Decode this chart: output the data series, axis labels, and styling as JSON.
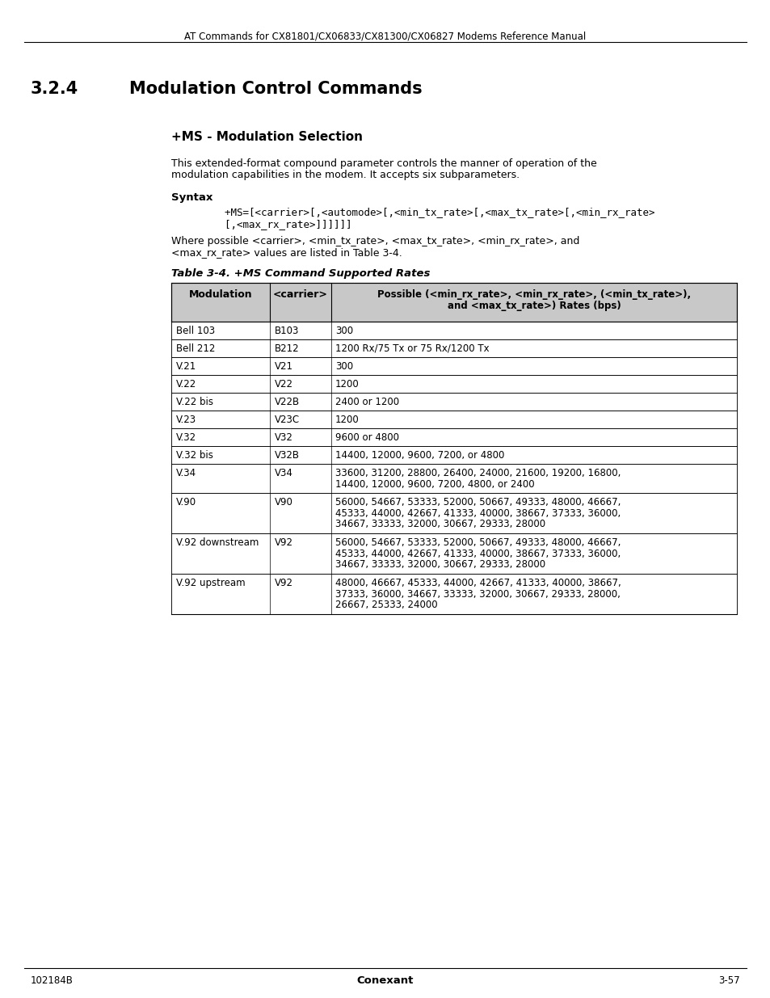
{
  "page_title": "AT Commands for CX81801/CX06833/CX81300/CX06827 Modems Reference Manual",
  "section": "3.2.4",
  "section_title": "Modulation Control Commands",
  "subsection_title": "+MS - Modulation Selection",
  "body_text1a": "This extended-format compound parameter controls the manner of operation of the",
  "body_text1b": "modulation capabilities in the modem. It accepts six subparameters.",
  "syntax_label": "Syntax",
  "syntax_line1": "    +MS=[<carrier>[,<automode>[,<min_tx_rate>[,<max_tx_rate>[,<min_rx_rate>",
  "syntax_line2": "    [,<max_rx_rate>]]]]]]",
  "where_line1": "Where possible <carrier>, <min_tx_rate>, <max_tx_rate>, <min_rx_rate>, and",
  "where_line2": "<max_rx_rate> values are listed in Table 3-4.",
  "table_caption": "Table 3-4. +MS Command Supported Rates",
  "col0_header": "Modulation",
  "col1_header": "<carrier>",
  "col2_header_line1": "Possible (<min_rx_rate>, <min_rx_rate>, (<min_tx_rate>),",
  "col2_header_line2": "and <max_tx_rate>) Rates (bps)",
  "table_rows": [
    [
      "Bell 103",
      "B103",
      "300"
    ],
    [
      "Bell 212",
      "B212",
      "1200 Rx/75 Tx or 75 Rx/1200 Tx"
    ],
    [
      "V.21",
      "V21",
      "300"
    ],
    [
      "V.22",
      "V22",
      "1200"
    ],
    [
      "V.22 bis",
      "V22B",
      "2400 or 1200"
    ],
    [
      "V.23",
      "V23C",
      "1200"
    ],
    [
      "V.32",
      "V32",
      "9600 or 4800"
    ],
    [
      "V.32 bis",
      "V32B",
      "14400, 12000, 9600, 7200, or 4800"
    ],
    [
      "V.34",
      "V34",
      "33600, 31200, 28800, 26400, 24000, 21600, 19200, 16800,\n14400, 12000, 9600, 7200, 4800, or 2400"
    ],
    [
      "V.90",
      "V90",
      "56000, 54667, 53333, 52000, 50667, 49333, 48000, 46667,\n45333, 44000, 42667, 41333, 40000, 38667, 37333, 36000,\n34667, 33333, 32000, 30667, 29333, 28000"
    ],
    [
      "V.92 downstream",
      "V92",
      "56000, 54667, 53333, 52000, 50667, 49333, 48000, 46667,\n45333, 44000, 42667, 41333, 40000, 38667, 37333, 36000,\n34667, 33333, 32000, 30667, 29333, 28000"
    ],
    [
      "V.92 upstream",
      "V92",
      "48000, 46667, 45333, 44000, 42667, 41333, 40000, 38667,\n37333, 36000, 34667, 33333, 32000, 30667, 29333, 28000,\n26667, 25333, 24000"
    ]
  ],
  "footer_left": "102184B",
  "footer_center": "Conexant",
  "footer_right": "3-57",
  "bg_color": "#ffffff",
  "header_bg": "#c8c8c8",
  "border_color": "#000000",
  "text_color": "#000000"
}
